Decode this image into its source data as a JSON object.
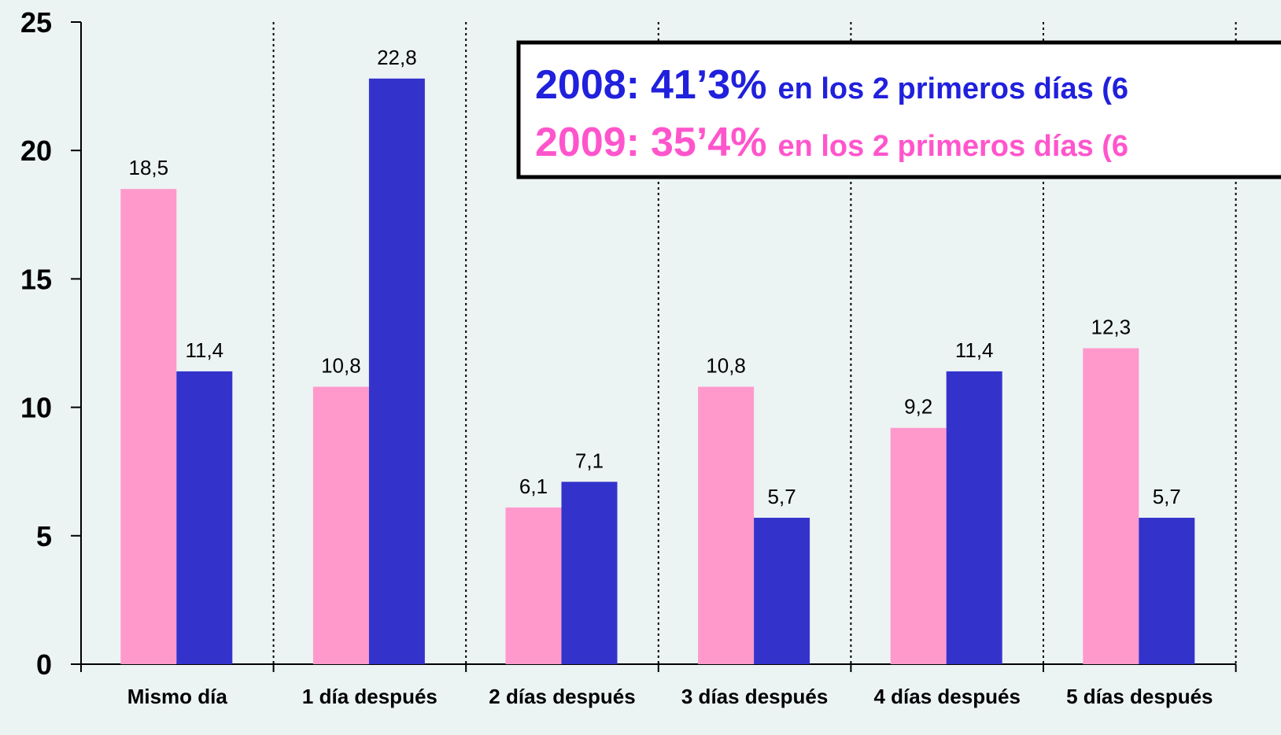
{
  "chart_data": {
    "type": "bar",
    "categories": [
      "Mismo día",
      "1 día después",
      "2 días después",
      "3 días después",
      "4 días después",
      "5 días después"
    ],
    "series": [
      {
        "color": "#ff99cc",
        "values": [
          18.5,
          10.8,
          6.1,
          10.8,
          9.2,
          12.3
        ],
        "value_labels": [
          "18,5",
          "10,8",
          "6,1",
          "10,8",
          "9,2",
          "12,3"
        ]
      },
      {
        "color": "#3333cc",
        "values": [
          11.4,
          22.8,
          7.1,
          5.7,
          11.4,
          5.7
        ],
        "value_labels": [
          "11,4",
          "22,8",
          "7,1",
          "5,7",
          "11,4",
          "5,7"
        ]
      }
    ],
    "ylim": [
      0,
      25
    ],
    "yticks": [
      0,
      5,
      10,
      15,
      20,
      25
    ],
    "grid": false,
    "annotations": [
      {
        "year": "2008:",
        "value": "41’3%",
        "text": "en los 2 primeros días (6",
        "color": "#2020dd"
      },
      {
        "year": "2009:",
        "value": "35’4%",
        "text": "en los 2 primeros días (6",
        "color": "#ff55cc"
      }
    ]
  }
}
